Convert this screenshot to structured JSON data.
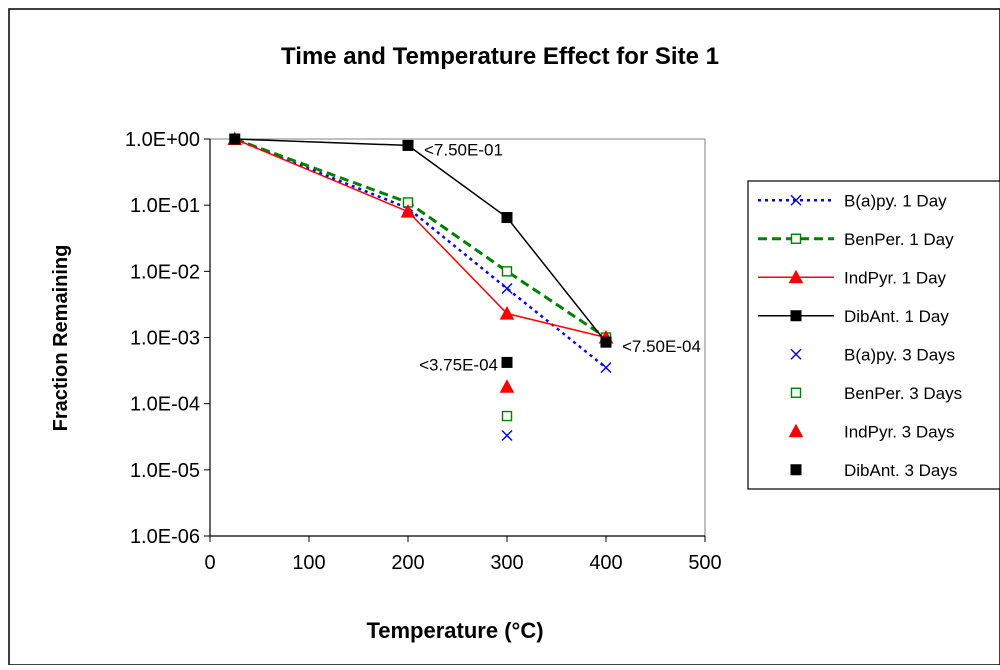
{
  "chart_data": {
    "type": "scatter",
    "title": "Time and Temperature Effect for Site 1",
    "xlabel": "Temperature (°C)",
    "ylabel": "Fraction Remaining",
    "x_ticks": [
      "0",
      "100",
      "200",
      "300",
      "400",
      "500"
    ],
    "y_ticks": [
      "1.0E+00",
      "1.0E-01",
      "1.0E-02",
      "1.0E-03",
      "1.0E-04",
      "1.0E-05",
      "1.0E-06"
    ],
    "xlim": [
      0,
      500
    ],
    "ylim": [
      1e-06,
      1
    ],
    "y_scale": "log",
    "grid": false,
    "legend_position": "right",
    "series": [
      {
        "name": "B(a)py. 1 Day",
        "color": "#0000ff",
        "marker": "x",
        "line": "dotted",
        "x": [
          25,
          200,
          300,
          400
        ],
        "y": [
          1.0,
          0.09,
          0.0055,
          0.00035
        ]
      },
      {
        "name": "BenPer. 1 Day",
        "color": "#008000",
        "marker": "square-open",
        "line": "dashed",
        "x": [
          25,
          200,
          300,
          400
        ],
        "y": [
          1.0,
          0.11,
          0.01,
          0.001
        ]
      },
      {
        "name": "IndPyr. 1 Day",
        "color": "#ff0000",
        "marker": "triangle",
        "line": "solid",
        "x": [
          25,
          200,
          300,
          400
        ],
        "y": [
          1.0,
          0.08,
          0.0023,
          0.001
        ]
      },
      {
        "name": "DibAnt. 1 Day",
        "color": "#000000",
        "marker": "square",
        "line": "solid",
        "x": [
          25,
          200,
          300,
          400
        ],
        "y": [
          1.0,
          0.8,
          0.065,
          0.00085
        ]
      },
      {
        "name": "B(a)py. 3  Days",
        "color": "#0000ff",
        "marker": "x",
        "line": "none",
        "x": [
          300
        ],
        "y": [
          3.3e-05
        ]
      },
      {
        "name": "BenPer. 3 Days",
        "color": "#008000",
        "marker": "square-open",
        "line": "none",
        "x": [
          300
        ],
        "y": [
          6.5e-05
        ]
      },
      {
        "name": "IndPyr. 3 Days",
        "color": "#ff0000",
        "marker": "triangle",
        "line": "none",
        "x": [
          300
        ],
        "y": [
          0.00018
        ]
      },
      {
        "name": "DibAnt. 3 Days",
        "color": "#000000",
        "marker": "square",
        "line": "none",
        "x": [
          300
        ],
        "y": [
          0.00042
        ]
      }
    ],
    "annotations": [
      {
        "text": "<7.50E-01",
        "x": 200,
        "y": 0.8,
        "anchor": "right"
      },
      {
        "text": "<3.75E-04",
        "x": 300,
        "y": 0.00042,
        "anchor": "left"
      },
      {
        "text": "<7.50E-04",
        "x": 400,
        "y": 0.00085,
        "anchor": "right"
      }
    ]
  }
}
